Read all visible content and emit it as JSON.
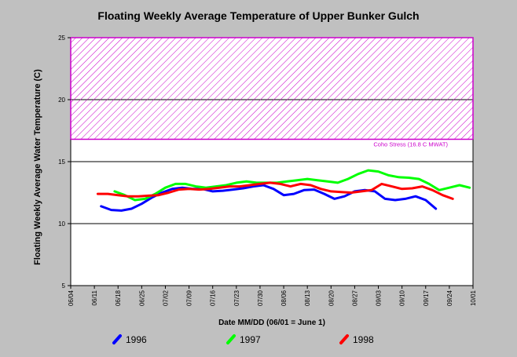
{
  "chart_data": {
    "type": "line",
    "title": "Floating Weekly Average Temperature of Upper Bunker Gulch",
    "xlabel": "Date MM/DD (06/01 = June 1)",
    "ylabel": "Floating Weekly Average Water Temperature (C)",
    "x_ticks": [
      "06/04",
      "06/11",
      "06/18",
      "06/25",
      "07/02",
      "07/09",
      "07/16",
      "07/23",
      "07/30",
      "08/06",
      "08/13",
      "08/20",
      "08/27",
      "09/03",
      "09/10",
      "09/17",
      "09/24",
      "10/01"
    ],
    "xlim": [
      "06/04",
      "10/01"
    ],
    "y_ticks": [
      5,
      10,
      15,
      20,
      25
    ],
    "ylim": [
      5,
      25
    ],
    "grid": "horizontal",
    "legend": "bottom",
    "threshold": {
      "label": "Coho Stress (16.8 C MWAT)",
      "value": 16.8,
      "upper": 25,
      "color": "#cc00cc"
    },
    "series": [
      {
        "name": "1996",
        "color": "#0000ff",
        "x": [
          "06/13",
          "06/16",
          "06/19",
          "06/22",
          "06/25",
          "06/28",
          "07/01",
          "07/04",
          "07/07",
          "07/10",
          "07/13",
          "07/16",
          "07/19",
          "07/22",
          "07/25",
          "07/28",
          "07/31",
          "08/03",
          "08/06",
          "08/09",
          "08/12",
          "08/15",
          "08/18",
          "08/21",
          "08/24",
          "08/27",
          "08/30",
          "09/02",
          "09/05",
          "09/08",
          "09/11",
          "09/14",
          "09/17",
          "09/20"
        ],
        "y": [
          11.4,
          11.1,
          11.05,
          11.2,
          11.6,
          12.1,
          12.5,
          12.8,
          12.9,
          12.8,
          12.8,
          12.6,
          12.65,
          12.75,
          12.85,
          13.0,
          13.1,
          12.8,
          12.3,
          12.4,
          12.7,
          12.75,
          12.4,
          12.0,
          12.2,
          12.6,
          12.7,
          12.6,
          12.0,
          11.9,
          12.0,
          12.2,
          11.9,
          11.2
        ]
      },
      {
        "name": "1997",
        "color": "#00ff00",
        "x": [
          "06/17",
          "06/20",
          "06/23",
          "06/26",
          "06/29",
          "07/02",
          "07/05",
          "07/08",
          "07/11",
          "07/14",
          "07/17",
          "07/20",
          "07/23",
          "07/26",
          "07/29",
          "08/01",
          "08/04",
          "08/07",
          "08/10",
          "08/13",
          "08/16",
          "08/19",
          "08/22",
          "08/25",
          "08/28",
          "08/31",
          "09/03",
          "09/06",
          "09/09",
          "09/12",
          "09/15",
          "09/18",
          "09/21",
          "09/24",
          "09/27",
          "09/30"
        ],
        "y": [
          12.6,
          12.3,
          11.9,
          12.0,
          12.4,
          12.9,
          13.2,
          13.2,
          13.0,
          12.9,
          13.0,
          13.1,
          13.3,
          13.4,
          13.3,
          13.3,
          13.3,
          13.4,
          13.5,
          13.6,
          13.5,
          13.4,
          13.3,
          13.6,
          14.0,
          14.3,
          14.2,
          13.9,
          13.75,
          13.7,
          13.6,
          13.2,
          12.7,
          12.9,
          13.1,
          12.9
        ]
      },
      {
        "name": "1998",
        "color": "#ff0000",
        "x": [
          "06/12",
          "06/15",
          "06/18",
          "06/21",
          "06/24",
          "06/27",
          "06/30",
          "07/03",
          "07/06",
          "07/09",
          "07/12",
          "07/15",
          "07/18",
          "07/21",
          "07/24",
          "07/27",
          "07/30",
          "08/02",
          "08/05",
          "08/08",
          "08/11",
          "08/14",
          "08/17",
          "08/20",
          "08/23",
          "08/26",
          "08/29",
          "09/01",
          "09/04",
          "09/07",
          "09/10",
          "09/13",
          "09/16",
          "09/19",
          "09/22",
          "09/25"
        ],
        "y": [
          12.4,
          12.4,
          12.3,
          12.2,
          12.2,
          12.25,
          12.3,
          12.5,
          12.75,
          12.8,
          12.75,
          12.8,
          12.9,
          13.0,
          13.0,
          13.1,
          13.2,
          13.3,
          13.2,
          13.0,
          13.2,
          13.1,
          12.8,
          12.6,
          12.55,
          12.5,
          12.6,
          12.7,
          13.2,
          13.0,
          12.8,
          12.85,
          13.0,
          12.7,
          12.3,
          12.0
        ]
      }
    ]
  }
}
